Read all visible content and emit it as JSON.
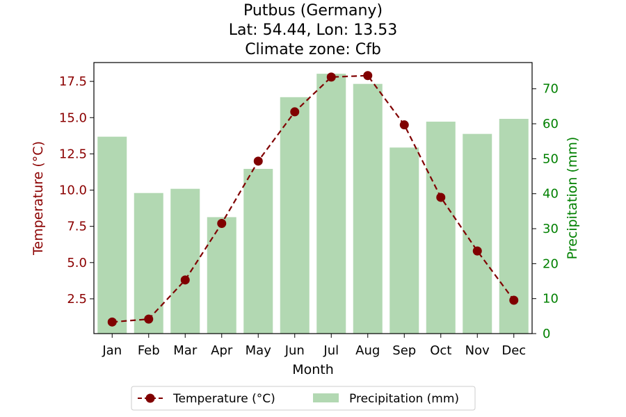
{
  "chart_data": {
    "type": "bar",
    "title_lines": [
      "Putbus (Germany)",
      "Lat: 54.44, Lon: 13.53",
      "Climate zone: Cfb"
    ],
    "xlabel": "Month",
    "categories": [
      "Jan",
      "Feb",
      "Mar",
      "Apr",
      "May",
      "Jun",
      "Jul",
      "Aug",
      "Sep",
      "Oct",
      "Nov",
      "Dec"
    ],
    "left_axis": {
      "label": "Temperature (°C)",
      "color": "#8b0000",
      "ylim": [
        0.1,
        18.8
      ],
      "ticks": [
        2.5,
        5.0,
        7.5,
        10.0,
        12.5,
        15.0,
        17.5
      ],
      "tick_labels": [
        "2.5",
        "5.0",
        "7.5",
        "10.0",
        "12.5",
        "15.0",
        "17.5"
      ]
    },
    "right_axis": {
      "label": "Precipitation (mm)",
      "color": "#008000",
      "ylim": [
        0,
        77.5
      ],
      "ticks": [
        0,
        10,
        20,
        30,
        40,
        50,
        60,
        70
      ],
      "tick_labels": [
        "0",
        "10",
        "20",
        "30",
        "40",
        "50",
        "60",
        "70"
      ]
    },
    "series": [
      {
        "name": "Temperature (°C)",
        "kind": "line",
        "axis": "left",
        "color": "#800000",
        "style": "dashed-with-circle-markers",
        "values": [
          0.9,
          1.1,
          3.8,
          7.7,
          12.0,
          15.4,
          17.8,
          17.9,
          14.5,
          9.5,
          5.8,
          2.4
        ]
      },
      {
        "name": "Precipitation (mm)",
        "kind": "bar",
        "axis": "right",
        "color": "#b2d8b2",
        "values": [
          56.3,
          40.2,
          41.4,
          33.3,
          47.1,
          67.6,
          74.3,
          71.4,
          53.2,
          60.6,
          57.1,
          61.4
        ]
      }
    ],
    "legend": {
      "placement": "bottom-center",
      "entries": [
        "Temperature (°C)",
        "Precipitation (mm)"
      ]
    },
    "grid": false
  }
}
